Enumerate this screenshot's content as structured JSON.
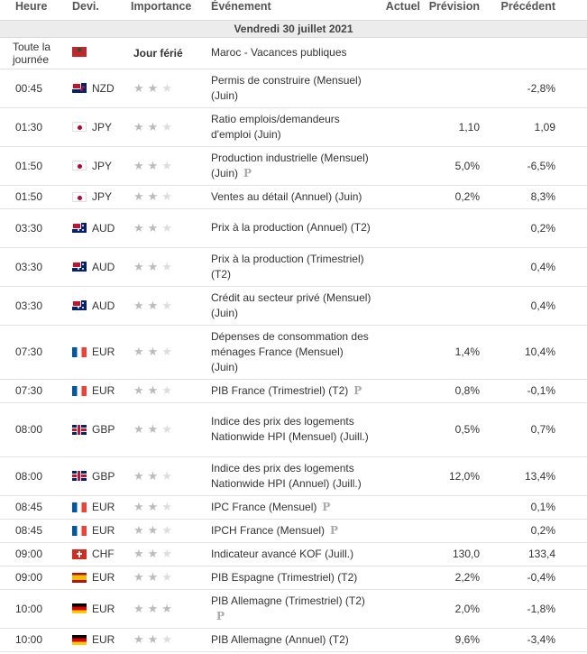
{
  "headers": {
    "time": "Heure",
    "currency": "Devi.",
    "importance": "Importance",
    "event": "Événement",
    "actual": "Actuel",
    "forecast": "Prévision",
    "previous": "Précédent"
  },
  "date_label": "Vendredi 30 juillet 2021",
  "holiday": {
    "time_line1": "Toute la",
    "time_line2": "journée",
    "flag": "ma",
    "label": "Jour férié",
    "event": "Maroc - Vacances publiques"
  },
  "rows": [
    {
      "time": "00:45",
      "flag": "nz",
      "currency": "NZD",
      "stars": 2,
      "event": "Permis de construire (Mensuel) (Juin)",
      "p": false,
      "actual": "",
      "forecast": "",
      "previous": "-2,8%"
    },
    {
      "time": "01:30",
      "flag": "jp",
      "currency": "JPY",
      "stars": 2,
      "event": "Ratio emplois/demandeurs d'emploi (Juin)",
      "p": false,
      "actual": "",
      "forecast": "1,10",
      "previous": "1,09"
    },
    {
      "time": "01:50",
      "flag": "jp",
      "currency": "JPY",
      "stars": 2,
      "event": "Production industrielle (Mensuel) (Juin)",
      "p": true,
      "actual": "",
      "forecast": "5,0%",
      "previous": "-6,5%"
    },
    {
      "time": "01:50",
      "flag": "jp",
      "currency": "JPY",
      "stars": 2,
      "event": "Ventes au détail (Annuel) (Juin)",
      "p": false,
      "actual": "",
      "forecast": "0,2%",
      "previous": "8,3%"
    },
    {
      "time": "03:30",
      "flag": "au",
      "currency": "AUD",
      "stars": 2,
      "event": "Prix à la production (Annuel) (T2)",
      "p": false,
      "actual": "",
      "forecast": "",
      "previous": "0,2%"
    },
    {
      "time": "03:30",
      "flag": "au",
      "currency": "AUD",
      "stars": 2,
      "event": "Prix à la production (Trimestriel) (T2)",
      "p": false,
      "actual": "",
      "forecast": "",
      "previous": "0,4%"
    },
    {
      "time": "03:30",
      "flag": "au",
      "currency": "AUD",
      "stars": 2,
      "event": "Crédit au secteur privé (Mensuel) (Juin)",
      "p": false,
      "actual": "",
      "forecast": "",
      "previous": "0,4%"
    },
    {
      "time": "07:30",
      "flag": "fr",
      "currency": "EUR",
      "stars": 2,
      "event": "Dépenses de consommation des ménages France (Mensuel) (Juin)",
      "p": false,
      "actual": "",
      "forecast": "1,4%",
      "previous": "10,4%"
    },
    {
      "time": "07:30",
      "flag": "fr",
      "currency": "EUR",
      "stars": 2,
      "event": "PIB France (Trimestriel) (T2)",
      "p": true,
      "actual": "",
      "forecast": "0,8%",
      "previous": "-0,1%"
    },
    {
      "time": "08:00",
      "flag": "gb",
      "currency": "GBP",
      "stars": 2,
      "event": "Indice des prix des logements Nationwide HPI (Mensuel) (Juill.)",
      "p": false,
      "actual": "",
      "forecast": "0,5%",
      "previous": "0,7%"
    },
    {
      "time": "08:00",
      "flag": "gb",
      "currency": "GBP",
      "stars": 2,
      "event": "Indice des prix des logements Nationwide HPI (Annuel) (Juill.)",
      "p": false,
      "actual": "",
      "forecast": "12,0%",
      "previous": "13,4%"
    },
    {
      "time": "08:45",
      "flag": "fr",
      "currency": "EUR",
      "stars": 2,
      "event": "IPC France (Mensuel)",
      "p": true,
      "actual": "",
      "forecast": "",
      "previous": "0,1%"
    },
    {
      "time": "08:45",
      "flag": "fr",
      "currency": "EUR",
      "stars": 2,
      "event": "IPCH France (Mensuel)",
      "p": true,
      "actual": "",
      "forecast": "",
      "previous": "0,2%"
    },
    {
      "time": "09:00",
      "flag": "ch",
      "currency": "CHF",
      "stars": 2,
      "event": "Indicateur avancé KOF (Juill.)",
      "p": false,
      "actual": "",
      "forecast": "130,0",
      "previous": "133,4"
    },
    {
      "time": "09:00",
      "flag": "es",
      "currency": "EUR",
      "stars": 2,
      "event": "PIB Espagne (Trimestriel) (T2)",
      "p": false,
      "actual": "",
      "forecast": "2,2%",
      "previous": "-0,4%"
    },
    {
      "time": "10:00",
      "flag": "de",
      "currency": "EUR",
      "stars": 3,
      "event": "PIB Allemagne (Trimestriel) (T2)",
      "p": true,
      "p_newline": true,
      "actual": "",
      "forecast": "2,0%",
      "previous": "-1,8%"
    },
    {
      "time": "10:00",
      "flag": "de",
      "currency": "EUR",
      "stars": 2,
      "event": "PIB Allemagne (Annuel) (T2)",
      "p": false,
      "actual": "",
      "forecast": "9,6%",
      "previous": "-3,4%"
    }
  ]
}
